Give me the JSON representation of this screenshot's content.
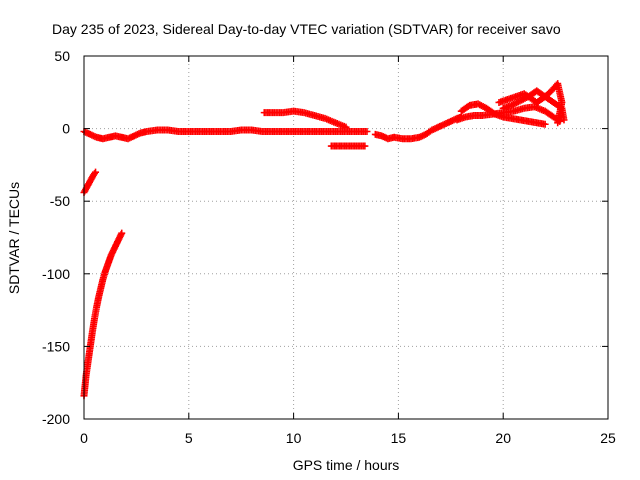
{
  "chart_data": {
    "type": "scatter",
    "title": "Day 235 of 2023, Sidereal Day-to-day VTEC variation (SDTVAR) for receiver savo",
    "xlabel": "GPS time / hours",
    "ylabel": "SDTVAR / TECUs",
    "xlim": [
      0,
      25
    ],
    "ylim": [
      -200,
      50
    ],
    "x_ticks": [
      0,
      5,
      10,
      15,
      20,
      25
    ],
    "x_tick_labels": [
      "0",
      "5",
      "10",
      "15",
      "20",
      "25"
    ],
    "y_ticks": [
      -200,
      -150,
      -100,
      -50,
      0,
      50
    ],
    "y_tick_labels": [
      "-200",
      "-150",
      "-100",
      "-50",
      "0",
      "50"
    ],
    "grid": true,
    "marker": "plus",
    "marker_color": "#ff0000",
    "series": [
      {
        "name": "main-trace",
        "points": [
          [
            0.0,
            -2
          ],
          [
            0.3,
            -4
          ],
          [
            0.6,
            -6
          ],
          [
            0.9,
            -7
          ],
          [
            1.2,
            -6
          ],
          [
            1.5,
            -5
          ],
          [
            1.8,
            -6
          ],
          [
            2.1,
            -7
          ],
          [
            2.4,
            -5
          ],
          [
            2.7,
            -3
          ],
          [
            3.0,
            -2
          ],
          [
            3.5,
            -1
          ],
          [
            4.0,
            -1
          ],
          [
            4.5,
            -2
          ],
          [
            5.0,
            -2
          ],
          [
            5.5,
            -2
          ],
          [
            6.0,
            -2
          ],
          [
            6.5,
            -2
          ],
          [
            7.0,
            -2
          ],
          [
            7.5,
            -1
          ],
          [
            8.0,
            -1
          ],
          [
            8.5,
            -2
          ],
          [
            9.0,
            -2
          ],
          [
            9.5,
            -2
          ],
          [
            10.0,
            -2
          ],
          [
            10.5,
            -2
          ],
          [
            11.0,
            -2
          ],
          [
            11.5,
            -2
          ],
          [
            12.0,
            -2
          ],
          [
            12.5,
            -2
          ],
          [
            13.0,
            -2
          ],
          [
            13.5,
            -2
          ]
        ]
      },
      {
        "name": "bump-trace",
        "points": [
          [
            8.6,
            11
          ],
          [
            9.0,
            11
          ],
          [
            9.5,
            11
          ],
          [
            10.0,
            12
          ],
          [
            10.5,
            11
          ],
          [
            11.0,
            9
          ],
          [
            11.5,
            7
          ],
          [
            12.0,
            4
          ],
          [
            12.5,
            1
          ]
        ]
      },
      {
        "name": "low-segment",
        "points": [
          [
            11.8,
            -12
          ],
          [
            12.2,
            -12
          ],
          [
            12.6,
            -12
          ],
          [
            13.0,
            -12
          ],
          [
            13.4,
            -12
          ]
        ]
      },
      {
        "name": "gap-segment",
        "points": [
          [
            13.9,
            -4
          ],
          [
            14.2,
            -5
          ],
          [
            14.5,
            -7
          ],
          [
            14.8,
            -6
          ],
          [
            15.2,
            -7
          ],
          [
            15.6,
            -7
          ],
          [
            16.0,
            -6
          ],
          [
            16.3,
            -4
          ],
          [
            16.6,
            -1
          ],
          [
            16.9,
            1
          ],
          [
            17.2,
            3
          ],
          [
            17.5,
            5
          ],
          [
            17.8,
            7
          ],
          [
            18.0,
            8
          ]
        ]
      },
      {
        "name": "end-trace-a",
        "points": [
          [
            17.8,
            6
          ],
          [
            18.2,
            8
          ],
          [
            18.6,
            9
          ],
          [
            19.0,
            9
          ],
          [
            19.5,
            10
          ],
          [
            20.0,
            11
          ],
          [
            20.5,
            12
          ],
          [
            21.0,
            14
          ],
          [
            21.5,
            15
          ],
          [
            22.0,
            12
          ],
          [
            22.4,
            8
          ],
          [
            22.7,
            5
          ]
        ]
      },
      {
        "name": "end-trace-b",
        "points": [
          [
            18.0,
            12
          ],
          [
            18.4,
            16
          ],
          [
            18.8,
            17
          ],
          [
            19.2,
            14
          ],
          [
            19.6,
            10
          ],
          [
            20.0,
            8
          ],
          [
            20.4,
            7
          ],
          [
            20.8,
            6
          ],
          [
            21.2,
            5
          ],
          [
            21.6,
            4
          ],
          [
            22.0,
            3
          ]
        ]
      },
      {
        "name": "end-trace-c",
        "points": [
          [
            19.8,
            18
          ],
          [
            20.2,
            20
          ],
          [
            20.6,
            22
          ],
          [
            21.0,
            24
          ],
          [
            21.3,
            21
          ],
          [
            21.6,
            18
          ],
          [
            22.0,
            22
          ],
          [
            22.3,
            26
          ],
          [
            22.6,
            31
          ],
          [
            22.8,
            18
          ],
          [
            22.6,
            4
          ]
        ]
      },
      {
        "name": "end-trace-d",
        "points": [
          [
            20.0,
            14
          ],
          [
            20.4,
            16
          ],
          [
            20.8,
            19
          ],
          [
            21.2,
            22
          ],
          [
            21.6,
            26
          ],
          [
            22.0,
            22
          ],
          [
            22.4,
            18
          ],
          [
            22.8,
            14
          ],
          [
            22.9,
            6
          ]
        ]
      },
      {
        "name": "steep-curve-a",
        "points": [
          [
            0.0,
            -44
          ],
          [
            0.15,
            -40
          ],
          [
            0.3,
            -36
          ],
          [
            0.45,
            -32
          ],
          [
            0.55,
            -30
          ]
        ]
      },
      {
        "name": "steep-curve-b",
        "points": [
          [
            0.0,
            -184
          ],
          [
            0.1,
            -170
          ],
          [
            0.2,
            -160
          ],
          [
            0.3,
            -150
          ],
          [
            0.4,
            -140
          ],
          [
            0.5,
            -131
          ],
          [
            0.6,
            -123
          ],
          [
            0.7,
            -116
          ],
          [
            0.8,
            -110
          ],
          [
            0.9,
            -104
          ],
          [
            1.0,
            -99
          ],
          [
            1.1,
            -95
          ],
          [
            1.2,
            -91
          ],
          [
            1.3,
            -87
          ],
          [
            1.4,
            -84
          ],
          [
            1.5,
            -81
          ],
          [
            1.6,
            -78
          ],
          [
            1.7,
            -75
          ],
          [
            1.8,
            -72
          ]
        ]
      }
    ]
  }
}
